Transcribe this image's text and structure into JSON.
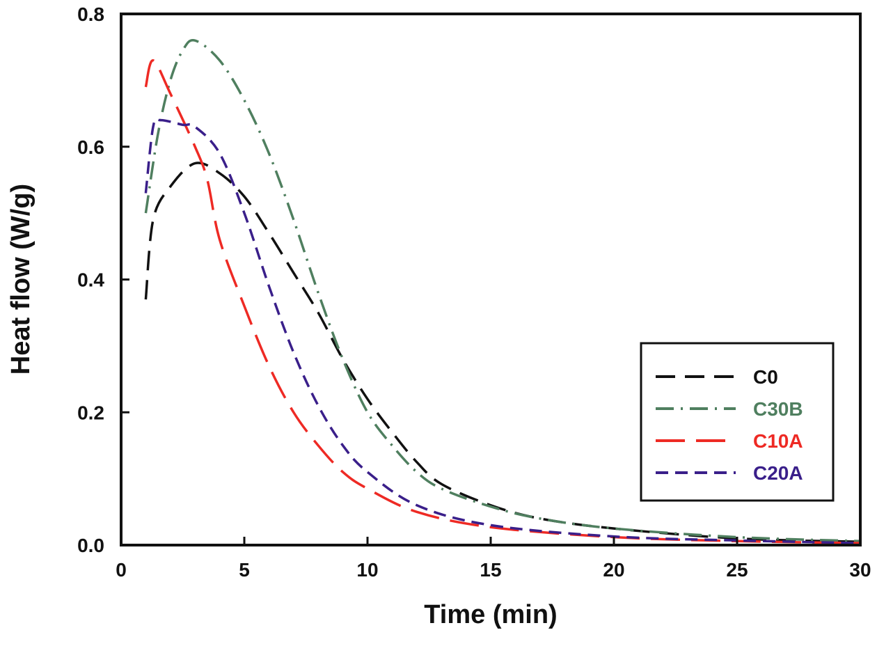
{
  "chart_data": {
    "type": "line",
    "title": "",
    "xlabel": "Time (min)",
    "ylabel": "Heat flow (W/g)",
    "xlim": [
      0,
      30
    ],
    "ylim": [
      0,
      0.8
    ],
    "xticks": [
      "0",
      "5",
      "10",
      "15",
      "20",
      "25",
      "30"
    ],
    "yticks": [
      "0.0",
      "0.2",
      "0.4",
      "0.6",
      "0.8"
    ],
    "grid": false,
    "legend_position": "right",
    "series": [
      {
        "name": "C0",
        "color": "#111111",
        "dash": "28,14",
        "x": [
          1,
          1.3,
          2,
          3,
          4,
          5,
          6,
          7,
          8,
          9,
          10,
          11,
          12,
          13,
          15,
          17,
          20,
          25,
          30
        ],
        "y": [
          0.37,
          0.49,
          0.54,
          0.575,
          0.56,
          0.525,
          0.47,
          0.41,
          0.35,
          0.28,
          0.22,
          0.17,
          0.125,
          0.092,
          0.06,
          0.04,
          0.025,
          0.01,
          0.005
        ]
      },
      {
        "name": "C30B",
        "color": "#4f7f5f",
        "dash": "26,10,3,10",
        "x": [
          1,
          1.5,
          2,
          2.5,
          3,
          4,
          5,
          6,
          7,
          8,
          9,
          10,
          11,
          12,
          13,
          15,
          17,
          20,
          25,
          30
        ],
        "y": [
          0.5,
          0.62,
          0.7,
          0.745,
          0.76,
          0.73,
          0.67,
          0.59,
          0.49,
          0.38,
          0.28,
          0.2,
          0.15,
          0.11,
          0.085,
          0.058,
          0.04,
          0.025,
          0.012,
          0.006
        ]
      },
      {
        "name": "C10A",
        "color": "#ee2a24",
        "dash": "42,16",
        "x": [
          1,
          1.3,
          2,
          3,
          3.5,
          4,
          5,
          6,
          7,
          8,
          9,
          10,
          12,
          15,
          20,
          25,
          30
        ],
        "y": [
          0.69,
          0.73,
          0.68,
          0.6,
          0.55,
          0.46,
          0.36,
          0.27,
          0.2,
          0.15,
          0.11,
          0.085,
          0.05,
          0.027,
          0.012,
          0.006,
          0.003
        ]
      },
      {
        "name": "C20A",
        "color": "#3a1f8a",
        "dash": "18,10",
        "x": [
          1,
          1.3,
          1.6,
          2.5,
          3,
          4,
          5,
          6,
          7,
          8,
          9,
          10,
          12,
          15,
          20,
          25,
          30
        ],
        "y": [
          0.53,
          0.63,
          0.64,
          0.633,
          0.63,
          0.59,
          0.5,
          0.39,
          0.29,
          0.21,
          0.15,
          0.11,
          0.06,
          0.03,
          0.013,
          0.007,
          0.003
        ]
      }
    ]
  }
}
